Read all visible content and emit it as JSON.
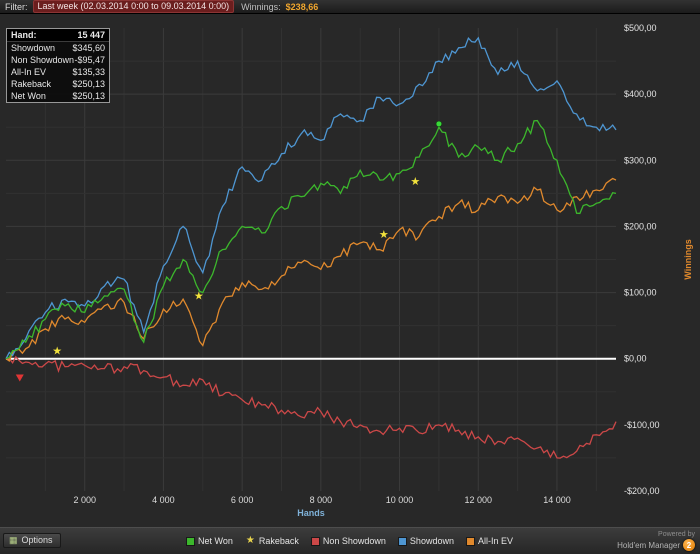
{
  "top_bar": {
    "filter_label": "Filter:",
    "filter_value": "Last week (02.03.2014 0:00 to 09.03.2014 0:00)",
    "winnings_label": "Winnings:",
    "winnings_value": "$238,66"
  },
  "tooltip": {
    "rows": [
      {
        "label": "Hand:",
        "value": "15 447"
      },
      {
        "label": "Showdown",
        "value": "$345,60"
      },
      {
        "label": "Non Showdown",
        "value": "-$95,47"
      },
      {
        "label": "All-In EV",
        "value": "$135,33"
      },
      {
        "label": "Rakeback",
        "value": "$250,13"
      },
      {
        "label": "Net Won",
        "value": "$250,13"
      }
    ]
  },
  "chart_data": {
    "type": "line",
    "xlabel": "Hands",
    "ylabel": "Winnings",
    "xlabel_color": "#7fb2d9",
    "ylabel_color": "#e0892d",
    "xlim": [
      0,
      15500
    ],
    "ylim": [
      -200,
      500
    ],
    "grid": true,
    "zero_line_color": "#ffffff",
    "xticks": [
      2000,
      4000,
      6000,
      8000,
      10000,
      12000,
      14000
    ],
    "xtick_labels": [
      "2 000",
      "4 000",
      "6 000",
      "8 000",
      "10 000",
      "12 000",
      "14 000"
    ],
    "yticks": [
      500,
      400,
      300,
      200,
      100,
      0,
      -100,
      -200
    ],
    "ytick_labels": [
      "$500,00",
      "$400,00",
      "$300,00",
      "$200,00",
      "$100,00",
      "$0,00",
      "-$100,00",
      "-$200,00"
    ],
    "x": [
      0,
      500,
      1000,
      1500,
      2000,
      2500,
      3000,
      3500,
      4000,
      4500,
      5000,
      5500,
      6000,
      6500,
      7000,
      7500,
      8000,
      8500,
      9000,
      9500,
      10000,
      10500,
      11000,
      11500,
      12000,
      12500,
      13000,
      13500,
      14000,
      14500,
      15000,
      15500
    ],
    "series": [
      {
        "name": "Non Showdown",
        "slug": "non-showdown",
        "color": "#cc4848",
        "values": [
          0,
          -5,
          -8,
          -12,
          -10,
          -15,
          -12,
          -18,
          -28,
          -40,
          -32,
          -55,
          -62,
          -70,
          -78,
          -88,
          -80,
          -95,
          -100,
          -110,
          -105,
          -112,
          -100,
          -108,
          -118,
          -125,
          -120,
          -135,
          -150,
          -140,
          -115,
          -95
        ]
      },
      {
        "name": "All-In EV",
        "slug": "all-in-ev",
        "color": "#e0892d",
        "values": [
          0,
          15,
          45,
          60,
          55,
          80,
          85,
          30,
          75,
          90,
          20,
          85,
          115,
          105,
          125,
          145,
          135,
          155,
          175,
          165,
          195,
          185,
          215,
          235,
          225,
          245,
          235,
          255,
          225,
          245,
          255,
          270
        ]
      },
      {
        "name": "Showdown",
        "slug": "showdown",
        "color": "#4e96d2",
        "values": [
          0,
          30,
          70,
          90,
          80,
          110,
          120,
          40,
          140,
          200,
          130,
          230,
          290,
          270,
          310,
          340,
          330,
          370,
          360,
          395,
          385,
          415,
          450,
          470,
          485,
          430,
          450,
          405,
          420,
          370,
          350,
          346
        ]
      },
      {
        "name": "Net Won",
        "slug": "net-won",
        "color": "#3cb72c",
        "values": [
          0,
          25,
          60,
          80,
          70,
          95,
          105,
          25,
          110,
          150,
          100,
          165,
          200,
          190,
          230,
          245,
          265,
          250,
          285,
          270,
          280,
          305,
          350,
          305,
          320,
          300,
          325,
          360,
          300,
          220,
          235,
          250
        ]
      },
      {
        "name": "Rakeback",
        "slug": "rakeback",
        "color": "#e8d44d",
        "marker": "star",
        "values": []
      }
    ],
    "markers": [
      {
        "shape": "star",
        "x": 1300,
        "y": 12,
        "color": "#f2e23c"
      },
      {
        "shape": "star",
        "x": 4900,
        "y": 95,
        "color": "#f2e23c"
      },
      {
        "shape": "star",
        "x": 9600,
        "y": 188,
        "color": "#f2e23c"
      },
      {
        "shape": "star",
        "x": 10400,
        "y": 268,
        "color": "#f2e23c"
      },
      {
        "shape": "circle",
        "x": 11000,
        "y": 355,
        "color": "#39d839"
      },
      {
        "shape": "triangle-down",
        "x": 350,
        "y": -30,
        "color": "#e03535"
      }
    ]
  },
  "legend": {
    "items": [
      {
        "label": "Net Won",
        "color": "#3cb72c",
        "icon": "square"
      },
      {
        "label": "Rakeback",
        "color": "#e8d44d",
        "icon": "star"
      },
      {
        "label": "Non Showdown",
        "color": "#cc4848",
        "icon": "square"
      },
      {
        "label": "Showdown",
        "color": "#4e96d2",
        "icon": "square"
      },
      {
        "label": "All-In EV",
        "color": "#e0892d",
        "icon": "square"
      }
    ]
  },
  "bottom_bar": {
    "options_label": "Options",
    "powered_by": "Powered by",
    "brand": "Hold'em Manager",
    "brand_badge": "2"
  }
}
